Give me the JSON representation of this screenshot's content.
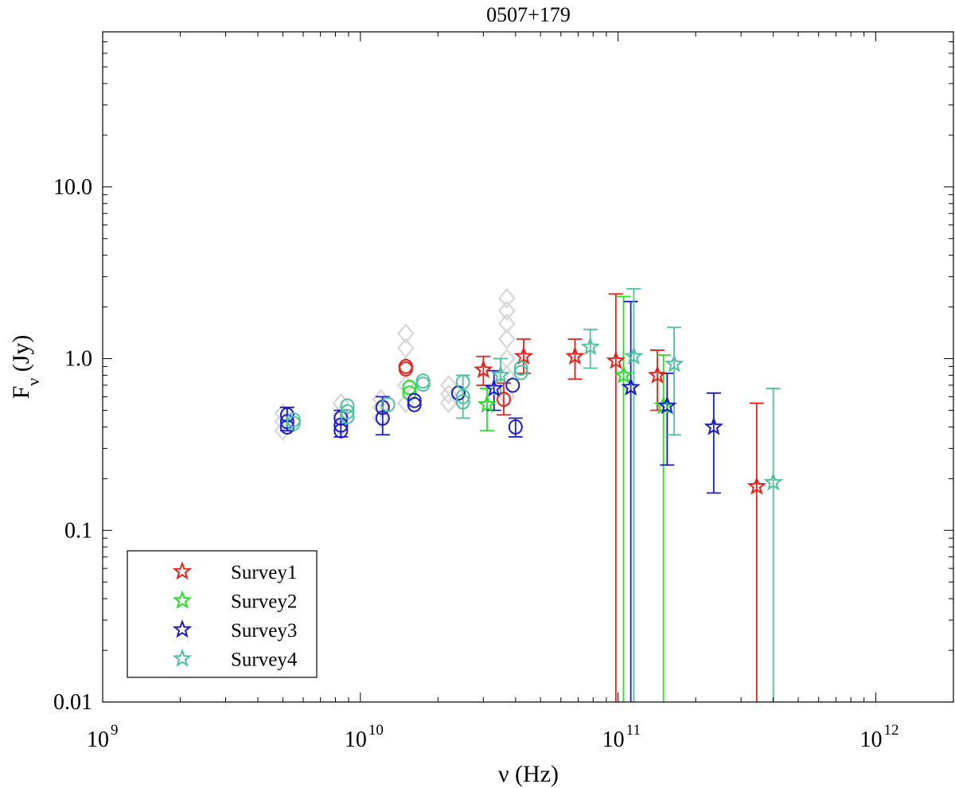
{
  "chart_data": {
    "type": "scatter",
    "title": "0507+179",
    "xlabel": "ν (Hz)",
    "ylabel": "F_ν (Jy)",
    "xscale": "log",
    "yscale": "log",
    "xlim": [
      1000000000.0,
      2000000000000.0
    ],
    "ylim": [
      0.01,
      80
    ],
    "grid": false,
    "legend_position": "bottom-left",
    "x_tick_labels": [
      {
        "value": 1000000000.0,
        "base": "10",
        "exp": "9"
      },
      {
        "value": 10000000000.0,
        "base": "10",
        "exp": "10"
      },
      {
        "value": 100000000000.0,
        "base": "10",
        "exp": "11"
      },
      {
        "value": 1000000000000.0,
        "base": "10",
        "exp": "12"
      }
    ],
    "y_tick_labels": [
      {
        "value": 0.01,
        "label": "0.01"
      },
      {
        "value": 0.1,
        "label": "0.1"
      },
      {
        "value": 1.0,
        "label": "1.0"
      },
      {
        "value": 10.0,
        "label": "10.0"
      }
    ],
    "historical_gray": {
      "color": "#d9d9d9",
      "points": [
        {
          "x": 5000000000.0,
          "y": 0.38
        },
        {
          "x": 5000000000.0,
          "y": 0.43
        },
        {
          "x": 5000000000.0,
          "y": 0.48
        },
        {
          "x": 8400000000.0,
          "y": 0.4
        },
        {
          "x": 8400000000.0,
          "y": 0.47
        },
        {
          "x": 8400000000.0,
          "y": 0.55
        },
        {
          "x": 12000000000.0,
          "y": 0.45
        },
        {
          "x": 12000000000.0,
          "y": 0.52
        },
        {
          "x": 12000000000.0,
          "y": 0.58
        },
        {
          "x": 15000000000.0,
          "y": 0.55
        },
        {
          "x": 15000000000.0,
          "y": 0.7
        },
        {
          "x": 15000000000.0,
          "y": 0.9
        },
        {
          "x": 15000000000.0,
          "y": 1.15
        },
        {
          "x": 15000000000.0,
          "y": 1.4
        },
        {
          "x": 22000000000.0,
          "y": 0.55
        },
        {
          "x": 22000000000.0,
          "y": 0.62
        },
        {
          "x": 22000000000.0,
          "y": 0.7
        },
        {
          "x": 37000000000.0,
          "y": 0.6
        },
        {
          "x": 37000000000.0,
          "y": 0.8
        },
        {
          "x": 37000000000.0,
          "y": 1.0
        },
        {
          "x": 37000000000.0,
          "y": 1.3
        },
        {
          "x": 37000000000.0,
          "y": 1.6
        },
        {
          "x": 37000000000.0,
          "y": 1.9
        },
        {
          "x": 37000000000.0,
          "y": 2.25
        }
      ]
    },
    "series": [
      {
        "name": "Survey1",
        "color": "#e8201c",
        "points": [
          {
            "x": 15000000000.0,
            "y": 0.9,
            "marker": "circle"
          },
          {
            "x": 15000000000.0,
            "y": 0.87,
            "marker": "circle"
          },
          {
            "x": 36000000000.0,
            "y": 0.58,
            "marker": "circle",
            "err": [
              0.47,
              0.72
            ]
          },
          {
            "x": 30000000000.0,
            "y": 0.86,
            "marker": "star",
            "err": [
              0.7,
              1.03
            ]
          },
          {
            "x": 43000000000.0,
            "y": 1.03,
            "marker": "star",
            "err": [
              0.82,
              1.3
            ]
          },
          {
            "x": 68000000000.0,
            "y": 1.03,
            "marker": "star",
            "err": [
              0.76,
              1.3
            ]
          },
          {
            "x": 98000000000.0,
            "y": 0.97,
            "marker": "star",
            "err": [
              0.01,
              2.38
            ]
          },
          {
            "x": 142000000000.0,
            "y": 0.8,
            "marker": "star",
            "err": [
              0.5,
              1.12
            ]
          },
          {
            "x": 345000000000.0,
            "y": 0.18,
            "marker": "star",
            "err": [
              0.01,
              0.55
            ]
          }
        ]
      },
      {
        "name": "Survey2",
        "color": "#22e022",
        "points": [
          {
            "x": 15500000000.0,
            "y": 0.63,
            "marker": "circle"
          },
          {
            "x": 15500000000.0,
            "y": 0.68,
            "marker": "circle"
          },
          {
            "x": 31000000000.0,
            "y": 0.54,
            "marker": "star",
            "err": [
              0.38,
              0.67
            ]
          },
          {
            "x": 105000000000.0,
            "y": 0.8,
            "marker": "star",
            "err": [
              0.01,
              2.3
            ]
          },
          {
            "x": 150000000000.0,
            "y": 0.53,
            "marker": "star",
            "err": [
              0.01,
              1.05
            ]
          }
        ]
      },
      {
        "name": "Survey3",
        "color": "#1b1bc8",
        "points": [
          {
            "x": 5200000000.0,
            "y": 0.47,
            "marker": "circle",
            "err": [
              0.38,
              0.52
            ]
          },
          {
            "x": 5200000000.0,
            "y": 0.43,
            "marker": "circle"
          },
          {
            "x": 5200000000.0,
            "y": 0.4,
            "marker": "circle"
          },
          {
            "x": 8400000000.0,
            "y": 0.45,
            "marker": "circle",
            "err": [
              0.35,
              0.5
            ]
          },
          {
            "x": 8400000000.0,
            "y": 0.41,
            "marker": "circle"
          },
          {
            "x": 8400000000.0,
            "y": 0.38,
            "marker": "circle"
          },
          {
            "x": 12200000000.0,
            "y": 0.52,
            "marker": "circle",
            "err": [
              0.36,
              0.6
            ]
          },
          {
            "x": 12200000000.0,
            "y": 0.45,
            "marker": "circle"
          },
          {
            "x": 16200000000.0,
            "y": 0.57,
            "marker": "circle"
          },
          {
            "x": 16200000000.0,
            "y": 0.54,
            "marker": "circle"
          },
          {
            "x": 24000000000.0,
            "y": 0.63,
            "marker": "circle"
          },
          {
            "x": 39000000000.0,
            "y": 0.7,
            "marker": "circle"
          },
          {
            "x": 40000000000.0,
            "y": 0.4,
            "marker": "circle",
            "err": [
              0.35,
              0.45
            ]
          },
          {
            "x": 33000000000.0,
            "y": 0.67,
            "marker": "star",
            "err": [
              0.5,
              0.85
            ]
          },
          {
            "x": 112000000000.0,
            "y": 0.68,
            "marker": "star",
            "err": [
              0.01,
              2.15
            ]
          },
          {
            "x": 155000000000.0,
            "y": 0.53,
            "marker": "star",
            "err": [
              0.24,
              0.82
            ]
          },
          {
            "x": 235000000000.0,
            "y": 0.4,
            "marker": "star",
            "err": [
              0.165,
              0.63
            ]
          }
        ]
      },
      {
        "name": "Survey4",
        "color": "#4dc0a0",
        "points": [
          {
            "x": 5500000000.0,
            "y": 0.42,
            "marker": "circle"
          },
          {
            "x": 5500000000.0,
            "y": 0.44,
            "marker": "circle"
          },
          {
            "x": 8900000000.0,
            "y": 0.53,
            "marker": "circle"
          },
          {
            "x": 8900000000.0,
            "y": 0.49,
            "marker": "circle"
          },
          {
            "x": 8900000000.0,
            "y": 0.46,
            "marker": "circle"
          },
          {
            "x": 12800000000.0,
            "y": 0.54,
            "marker": "circle"
          },
          {
            "x": 17500000000.0,
            "y": 0.74,
            "marker": "circle"
          },
          {
            "x": 17500000000.0,
            "y": 0.71,
            "marker": "circle"
          },
          {
            "x": 25000000000.0,
            "y": 0.73,
            "marker": "circle"
          },
          {
            "x": 25000000000.0,
            "y": 0.6,
            "marker": "circle",
            "err": [
              0.45,
              0.8
            ]
          },
          {
            "x": 25000000000.0,
            "y": 0.56,
            "marker": "circle"
          },
          {
            "x": 42000000000.0,
            "y": 0.88,
            "marker": "circle"
          },
          {
            "x": 42000000000.0,
            "y": 0.83,
            "marker": "circle"
          },
          {
            "x": 35000000000.0,
            "y": 0.8,
            "marker": "star",
            "err": [
              0.62,
              1.0
            ]
          },
          {
            "x": 78000000000.0,
            "y": 1.17,
            "marker": "star",
            "err": [
              0.88,
              1.48
            ]
          },
          {
            "x": 115000000000.0,
            "y": 1.03,
            "marker": "star",
            "err": [
              0.01,
              2.55
            ]
          },
          {
            "x": 165000000000.0,
            "y": 0.93,
            "marker": "star",
            "err": [
              0.36,
              1.52
            ]
          },
          {
            "x": 400000000000.0,
            "y": 0.19,
            "marker": "star",
            "err": [
              0.01,
              0.67
            ]
          }
        ]
      }
    ]
  }
}
